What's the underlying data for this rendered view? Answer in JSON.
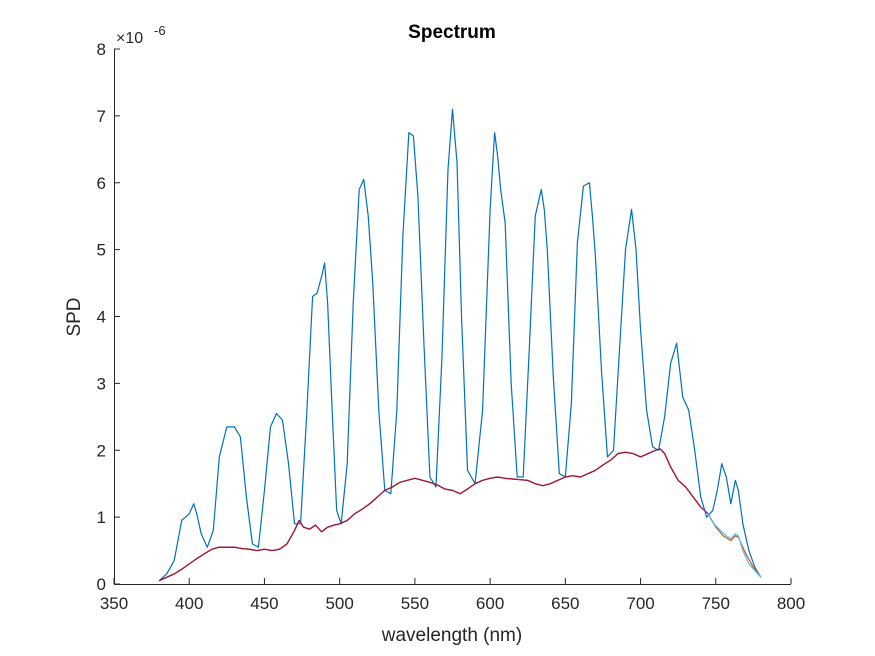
{
  "chart_data": {
    "type": "line",
    "title": "Spectrum",
    "xlabel": "wavelength (nm)",
    "ylabel": "SPD",
    "y_multiplier_label": "×10",
    "y_multiplier_exponent": "-6",
    "xlim": [
      350,
      800
    ],
    "ylim": [
      0,
      8
    ],
    "xticks": [
      "350",
      "400",
      "450",
      "500",
      "550",
      "600",
      "650",
      "700",
      "750",
      "800"
    ],
    "yticks": [
      "0",
      "1",
      "2",
      "3",
      "4",
      "5",
      "6",
      "7",
      "8"
    ],
    "grid": false,
    "series": [
      {
        "color": "#0072BD",
        "x": [
          380,
          385,
          390,
          395,
          400,
          403,
          405,
          408,
          412,
          416,
          420,
          425,
          430,
          434,
          438,
          442,
          446,
          450,
          454,
          458,
          462,
          466,
          470,
          474,
          478,
          482,
          485,
          488,
          490,
          492,
          495,
          498,
          501,
          505,
          509,
          513,
          516,
          519,
          522,
          526,
          530,
          534,
          538,
          542,
          546,
          549,
          552,
          556,
          560,
          564,
          568,
          572,
          575,
          578,
          581,
          585,
          590,
          595,
          600,
          603,
          605,
          607,
          610,
          614,
          618,
          622,
          626,
          630,
          634,
          636,
          638,
          642,
          646,
          650,
          654,
          658,
          662,
          666,
          668,
          670,
          674,
          678,
          682,
          686,
          690,
          694,
          697,
          700,
          704,
          708,
          712,
          716,
          720,
          724,
          726,
          728,
          732,
          736,
          740,
          744,
          748,
          751,
          754,
          757,
          760,
          763,
          765,
          768,
          772,
          776,
          780
        ],
        "y": [
          0.05,
          0.15,
          0.35,
          0.95,
          1.05,
          1.2,
          1.05,
          0.75,
          0.55,
          0.8,
          1.9,
          2.35,
          2.35,
          2.2,
          1.3,
          0.6,
          0.55,
          1.4,
          2.35,
          2.55,
          2.45,
          1.8,
          0.9,
          0.9,
          2.5,
          4.3,
          4.35,
          4.6,
          4.8,
          4.2,
          2.6,
          1.1,
          0.9,
          1.8,
          4.2,
          5.9,
          6.05,
          5.5,
          4.5,
          2.6,
          1.4,
          1.35,
          2.6,
          5.2,
          6.75,
          6.7,
          5.8,
          3.6,
          1.6,
          1.45,
          3.4,
          6.2,
          7.1,
          6.3,
          4.0,
          1.7,
          1.5,
          2.6,
          5.6,
          6.75,
          6.4,
          5.9,
          5.4,
          3.0,
          1.6,
          1.6,
          3.5,
          5.5,
          5.9,
          5.6,
          5.0,
          3.1,
          1.65,
          1.6,
          2.7,
          5.1,
          5.95,
          6.0,
          5.5,
          4.9,
          3.2,
          1.9,
          2.0,
          3.5,
          5.0,
          5.6,
          5.0,
          3.8,
          2.6,
          2.05,
          2.0,
          2.5,
          3.3,
          3.6,
          3.2,
          2.8,
          2.6,
          2.0,
          1.3,
          1.0,
          1.1,
          1.4,
          1.8,
          1.6,
          1.2,
          1.55,
          1.4,
          0.9,
          0.5,
          0.25,
          0.1
        ]
      },
      {
        "color": "#D95319",
        "x": [
          380,
          385,
          390,
          395,
          400,
          405,
          410,
          415,
          420,
          425,
          430,
          435,
          440,
          445,
          450,
          455,
          460,
          465,
          470,
          473,
          476,
          480,
          484,
          488,
          492,
          496,
          500,
          505,
          510,
          515,
          520,
          525,
          530,
          535,
          540,
          545,
          550,
          555,
          560,
          565,
          570,
          575,
          580,
          585,
          590,
          595,
          600,
          605,
          610,
          615,
          620,
          625,
          630,
          635,
          640,
          645,
          650,
          655,
          660,
          665,
          670,
          675,
          680,
          685,
          690,
          695,
          700,
          705,
          710,
          713,
          716,
          720,
          725,
          730,
          735,
          740,
          745,
          750,
          755,
          760,
          763,
          765,
          770,
          775,
          780
        ],
        "y": [
          0.05,
          0.1,
          0.15,
          0.22,
          0.3,
          0.38,
          0.45,
          0.52,
          0.55,
          0.55,
          0.55,
          0.53,
          0.52,
          0.5,
          0.52,
          0.5,
          0.52,
          0.6,
          0.8,
          0.95,
          0.85,
          0.82,
          0.88,
          0.78,
          0.85,
          0.88,
          0.9,
          0.95,
          1.05,
          1.12,
          1.2,
          1.3,
          1.4,
          1.45,
          1.52,
          1.55,
          1.58,
          1.55,
          1.52,
          1.48,
          1.42,
          1.4,
          1.35,
          1.42,
          1.5,
          1.55,
          1.58,
          1.6,
          1.58,
          1.57,
          1.56,
          1.55,
          1.5,
          1.47,
          1.5,
          1.55,
          1.6,
          1.62,
          1.6,
          1.65,
          1.7,
          1.78,
          1.85,
          1.95,
          1.97,
          1.95,
          1.9,
          1.95,
          2.0,
          2.02,
          1.95,
          1.75,
          1.55,
          1.45,
          1.3,
          1.15,
          1.05,
          0.85,
          0.72,
          0.65,
          0.72,
          0.7,
          0.45,
          0.25,
          0.1
        ]
      },
      {
        "color": "#7E2F8E",
        "x": [
          380,
          385,
          390,
          395,
          400,
          405,
          410,
          415,
          420,
          425,
          430,
          435,
          440,
          445,
          450,
          455,
          460,
          465,
          470,
          473,
          476,
          480,
          484,
          488,
          492,
          496,
          500,
          505,
          510,
          515,
          520,
          525,
          530,
          535,
          540,
          545,
          550,
          555,
          560,
          565,
          570,
          575,
          580,
          585,
          590,
          595,
          600,
          605,
          610,
          615,
          620,
          625,
          630,
          635,
          640,
          645,
          650,
          655,
          660,
          665,
          670,
          675,
          680,
          685,
          690,
          695,
          700,
          705,
          710,
          713,
          716,
          720,
          725,
          730,
          735,
          740,
          745
        ],
        "y": [
          0.05,
          0.1,
          0.15,
          0.22,
          0.3,
          0.38,
          0.45,
          0.52,
          0.55,
          0.55,
          0.55,
          0.53,
          0.52,
          0.5,
          0.52,
          0.5,
          0.52,
          0.6,
          0.8,
          0.95,
          0.85,
          0.82,
          0.88,
          0.78,
          0.85,
          0.88,
          0.9,
          0.95,
          1.05,
          1.12,
          1.2,
          1.3,
          1.4,
          1.45,
          1.52,
          1.55,
          1.58,
          1.55,
          1.52,
          1.48,
          1.42,
          1.4,
          1.35,
          1.42,
          1.5,
          1.55,
          1.58,
          1.6,
          1.58,
          1.57,
          1.56,
          1.55,
          1.5,
          1.47,
          1.5,
          1.55,
          1.6,
          1.62,
          1.6,
          1.65,
          1.7,
          1.78,
          1.85,
          1.95,
          1.97,
          1.95,
          1.9,
          1.95,
          2.0,
          2.02,
          1.95,
          1.75,
          1.55,
          1.45,
          1.3,
          1.15,
          1.05
        ]
      },
      {
        "color": "#A2142F",
        "x": [
          380,
          385,
          390,
          395,
          400,
          405,
          410,
          415,
          420,
          425,
          430,
          435,
          440,
          445,
          450,
          455,
          460,
          465,
          470,
          473,
          476,
          480,
          484,
          488,
          492,
          496,
          500,
          505,
          510,
          515,
          520,
          525,
          530,
          535,
          540,
          545,
          550,
          555,
          560,
          565,
          570,
          575,
          580,
          585,
          590,
          595,
          600,
          605,
          610,
          615,
          620,
          625,
          630,
          635,
          640,
          645,
          650,
          655,
          660,
          665,
          670,
          675,
          680,
          685,
          690,
          695,
          700,
          705,
          710,
          713,
          716,
          720,
          725,
          730,
          735,
          740
        ],
        "y": [
          0.05,
          0.1,
          0.15,
          0.22,
          0.3,
          0.38,
          0.45,
          0.52,
          0.55,
          0.55,
          0.55,
          0.53,
          0.52,
          0.5,
          0.52,
          0.5,
          0.52,
          0.6,
          0.8,
          0.95,
          0.85,
          0.82,
          0.88,
          0.78,
          0.85,
          0.88,
          0.9,
          0.95,
          1.05,
          1.12,
          1.2,
          1.3,
          1.4,
          1.45,
          1.52,
          1.55,
          1.58,
          1.55,
          1.52,
          1.48,
          1.42,
          1.4,
          1.35,
          1.42,
          1.5,
          1.55,
          1.58,
          1.6,
          1.58,
          1.57,
          1.56,
          1.55,
          1.5,
          1.47,
          1.5,
          1.55,
          1.6,
          1.62,
          1.6,
          1.65,
          1.7,
          1.78,
          1.85,
          1.95,
          1.97,
          1.95,
          1.9,
          1.95,
          2.0,
          2.02,
          1.95,
          1.75,
          1.55,
          1.45,
          1.3,
          1.15
        ]
      },
      {
        "color": "#4DBEEE",
        "x": [
          745,
          748,
          751,
          754,
          757,
          760,
          763,
          765,
          768,
          772,
          776,
          780
        ],
        "y": [
          1.05,
          0.92,
          0.85,
          0.78,
          0.72,
          0.68,
          0.75,
          0.72,
          0.5,
          0.3,
          0.2,
          0.1
        ]
      }
    ]
  }
}
